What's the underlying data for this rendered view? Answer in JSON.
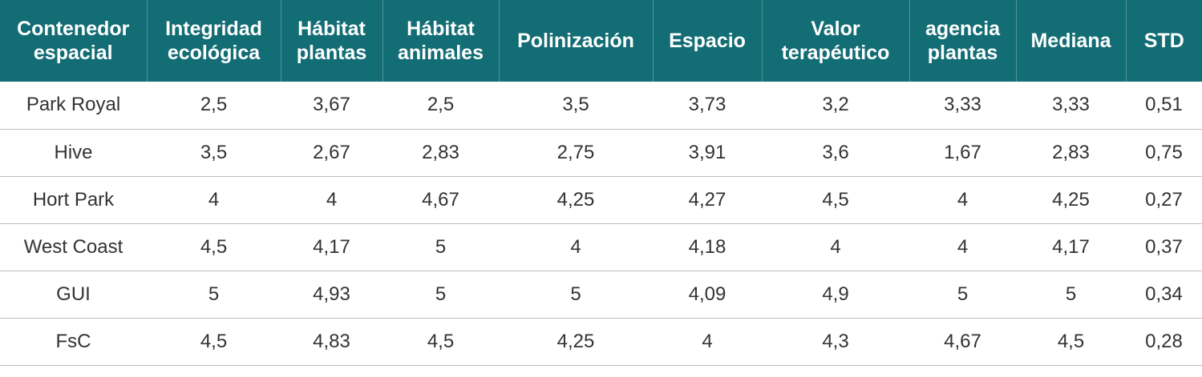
{
  "table": {
    "header_color": "#136d74",
    "headers": [
      [
        "Contenedor",
        "espacial"
      ],
      [
        "Integridad",
        "ecológica"
      ],
      [
        "Hábitat",
        "plantas"
      ],
      [
        "Hábitat",
        "animales"
      ],
      [
        "Polinización"
      ],
      [
        "Espacio"
      ],
      [
        "Valor",
        "terapéutico"
      ],
      [
        "agencia",
        "plantas"
      ],
      [
        "Mediana"
      ],
      [
        "STD"
      ]
    ],
    "rows": [
      [
        "Park Royal",
        "2,5",
        "3,67",
        "2,5",
        "3,5",
        "3,73",
        "3,2",
        "3,33",
        "3,33",
        "0,51"
      ],
      [
        "Hive",
        "3,5",
        "2,67",
        "2,83",
        "2,75",
        "3,91",
        "3,6",
        "1,67",
        "2,83",
        "0,75"
      ],
      [
        "Hort Park",
        "4",
        "4",
        "4,67",
        "4,25",
        "4,27",
        "4,5",
        "4",
        "4,25",
        "0,27"
      ],
      [
        "West Coast",
        "4,5",
        "4,17",
        "5",
        "4",
        "4,18",
        "4",
        "4",
        "4,17",
        "0,37"
      ],
      [
        "GUI",
        "5",
        "4,93",
        "5",
        "5",
        "4,09",
        "4,9",
        "5",
        "5",
        "0,34"
      ],
      [
        "FsC",
        "4,5",
        "4,83",
        "4,5",
        "4,25",
        "4",
        "4,3",
        "4,67",
        "4,5",
        "0,28"
      ]
    ]
  }
}
